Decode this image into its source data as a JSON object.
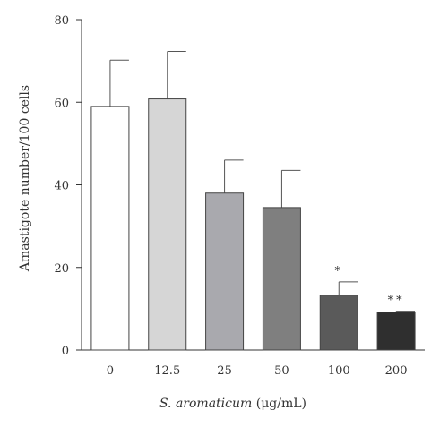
{
  "chart_data": {
    "type": "bar",
    "title": "",
    "categories": [
      "0",
      "12.5",
      "25",
      "50",
      "100",
      "200"
    ],
    "values": [
      59,
      60.8,
      38,
      34.5,
      13.3,
      9.2
    ],
    "errors": [
      11.2,
      11.5,
      8,
      9,
      3.2,
      0.2
    ],
    "significance": [
      "",
      "",
      "",
      "",
      "*",
      "**"
    ],
    "bar_colors": [
      "#ffffff",
      "#d6d6d6",
      "#a9a9ae",
      "#7f7f7f",
      "#5a5a5a",
      "#2f2f2f"
    ],
    "ylabel": "Amastigote number/100 cells",
    "xlabel_italic": "S. aromaticum",
    "xlabel_rest": " (μg/mL)",
    "ylim": [
      0,
      80
    ],
    "yticks": [
      0,
      20,
      40,
      60,
      80
    ],
    "grid": false,
    "legend": "none"
  }
}
